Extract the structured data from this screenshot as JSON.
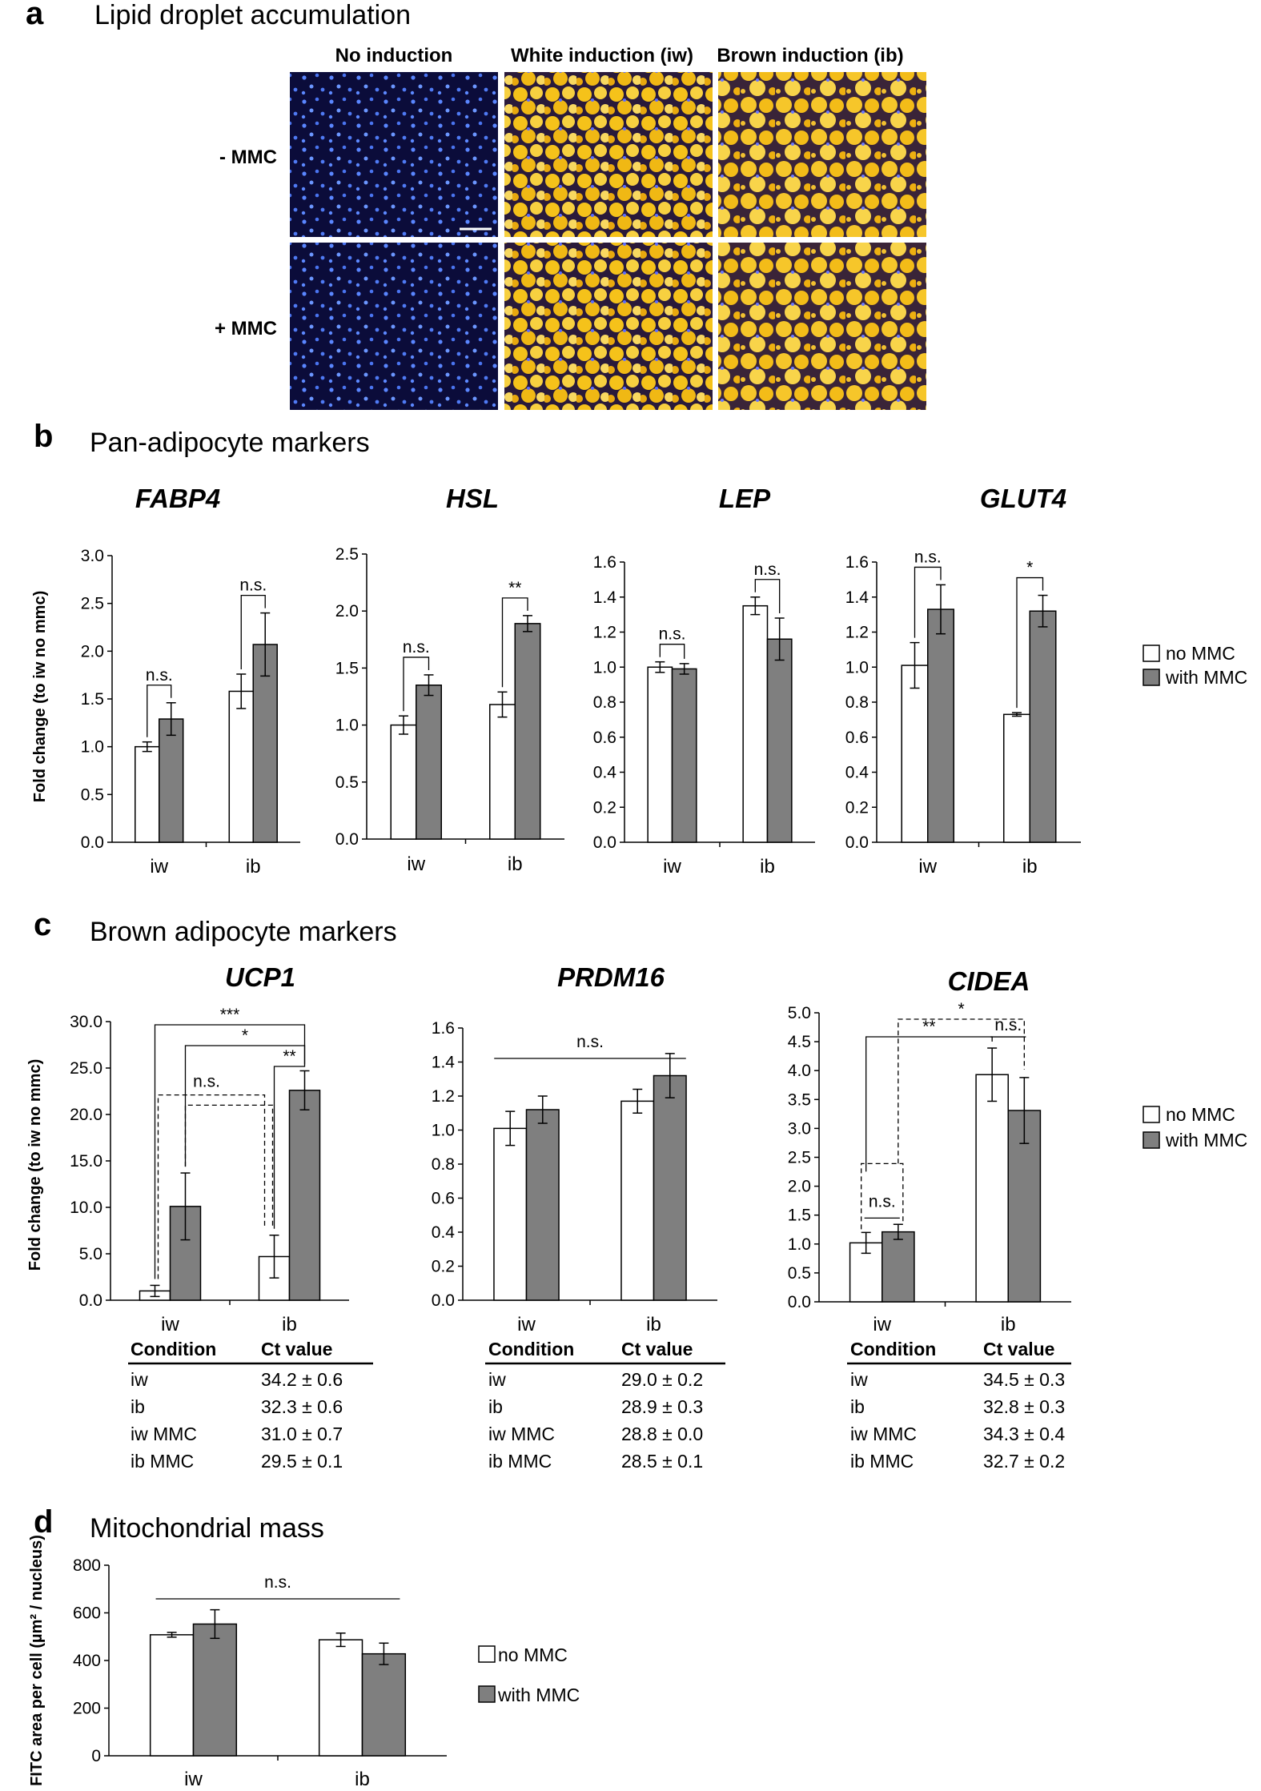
{
  "panel_a": {
    "letter": "a",
    "title": "Lipid droplet accumulation",
    "col_labels": [
      "No induction",
      "White induction (iw)",
      "Brown induction (ib)"
    ],
    "row_labels": [
      "- MMC",
      "+ MMC"
    ]
  },
  "panel_b": {
    "letter": "b",
    "title": "Pan-adipocyte markers"
  },
  "panel_c": {
    "letter": "c",
    "title": "Brown adipocyte markers"
  },
  "panel_d": {
    "letter": "d",
    "title": "Mitochondrial mass"
  },
  "legend": {
    "items": [
      "no MMC",
      "with MMC"
    ],
    "colors": [
      "#ffffff",
      "#7f7f7f"
    ]
  },
  "tables": {
    "headers": [
      "Condition",
      "Ct value"
    ],
    "conditions": [
      "iw",
      "ib",
      "iw MMC",
      "ib MMC"
    ],
    "UCP1": [
      "34.2 ± 0.6",
      "32.3 ± 0.6",
      "31.0 ± 0.7",
      "29.5 ± 0.1"
    ],
    "PRDM16": [
      "29.0 ± 0.2",
      "28.9 ± 0.3",
      "28.8 ± 0.0",
      "28.5 ± 0.1"
    ],
    "CIDEA": [
      "34.5 ± 0.3",
      "32.8 ± 0.3",
      "34.3 ± 0.4",
      "32.7 ± 0.2"
    ]
  },
  "chart_data": [
    {
      "type": "bar",
      "title": "FABP4",
      "ylabel": "Fold change (to iw no mmc)",
      "categories": [
        "iw",
        "ib"
      ],
      "ylim": [
        0,
        3.0
      ],
      "yticks": [
        "0.0",
        "0.5",
        "1.0",
        "1.5",
        "2.0",
        "2.5",
        "3.0"
      ],
      "series": [
        {
          "name": "no MMC",
          "values": [
            1.0,
            1.58
          ],
          "errors": [
            0.05,
            0.18
          ]
        },
        {
          "name": "with MMC",
          "values": [
            1.29,
            2.07
          ],
          "errors": [
            0.17,
            0.33
          ]
        }
      ],
      "annotations": [
        "n.s.",
        "n.s."
      ]
    },
    {
      "type": "bar",
      "title": "HSL",
      "categories": [
        "iw",
        "ib"
      ],
      "ylim": [
        0,
        2.5
      ],
      "yticks": [
        "0.0",
        "0.5",
        "1.0",
        "1.5",
        "2.0",
        "2.5"
      ],
      "series": [
        {
          "name": "no MMC",
          "values": [
            1.0,
            1.18
          ],
          "errors": [
            0.08,
            0.11
          ]
        },
        {
          "name": "with MMC",
          "values": [
            1.35,
            1.89
          ],
          "errors": [
            0.09,
            0.07
          ]
        }
      ],
      "annotations": [
        "n.s.",
        "**"
      ]
    },
    {
      "type": "bar",
      "title": "LEP",
      "categories": [
        "iw",
        "ib"
      ],
      "ylim": [
        0,
        1.6
      ],
      "yticks": [
        "0.0",
        "0.2",
        "0.4",
        "0.6",
        "0.8",
        "1.0",
        "1.2",
        "1.4",
        "1.6"
      ],
      "series": [
        {
          "name": "no MMC",
          "values": [
            1.0,
            1.35
          ],
          "errors": [
            0.03,
            0.05
          ]
        },
        {
          "name": "with MMC",
          "values": [
            0.99,
            1.16
          ],
          "errors": [
            0.03,
            0.12
          ]
        }
      ],
      "annotations": [
        "n.s.",
        "n.s."
      ]
    },
    {
      "type": "bar",
      "title": "GLUT4",
      "categories": [
        "iw",
        "ib"
      ],
      "ylim": [
        0,
        1.6
      ],
      "yticks": [
        "0.0",
        "0.2",
        "0.4",
        "0.6",
        "0.8",
        "1.0",
        "1.2",
        "1.4",
        "1.6"
      ],
      "series": [
        {
          "name": "no MMC",
          "values": [
            1.01,
            0.73
          ],
          "errors": [
            0.13,
            0.01
          ]
        },
        {
          "name": "with MMC",
          "values": [
            1.33,
            1.32
          ],
          "errors": [
            0.14,
            0.09
          ]
        }
      ],
      "annotations": [
        "n.s.",
        "*"
      ]
    },
    {
      "type": "bar",
      "title": "UCP1",
      "ylabel": "Fold change (to iw no mmc)",
      "categories": [
        "iw",
        "ib"
      ],
      "ylim": [
        0,
        30.0
      ],
      "yticks": [
        "0.0",
        "5.0",
        "10.0",
        "15.0",
        "20.0",
        "25.0",
        "30.0"
      ],
      "series": [
        {
          "name": "no MMC",
          "values": [
            1.0,
            4.7
          ],
          "errors": [
            0.6,
            2.3
          ]
        },
        {
          "name": "with MMC",
          "values": [
            10.1,
            22.6
          ],
          "errors": [
            3.6,
            2.1
          ]
        }
      ],
      "annotations": [
        "***",
        "*",
        "**",
        "n.s."
      ]
    },
    {
      "type": "bar",
      "title": "PRDM16",
      "categories": [
        "iw",
        "ib"
      ],
      "ylim": [
        0,
        1.6
      ],
      "yticks": [
        "0.0",
        "0.2",
        "0.4",
        "0.6",
        "0.8",
        "1.0",
        "1.2",
        "1.4",
        "1.6"
      ],
      "series": [
        {
          "name": "no MMC",
          "values": [
            1.01,
            1.17
          ],
          "errors": [
            0.1,
            0.07
          ]
        },
        {
          "name": "with MMC",
          "values": [
            1.12,
            1.32
          ],
          "errors": [
            0.08,
            0.13
          ]
        }
      ],
      "annotations": [
        "n.s."
      ]
    },
    {
      "type": "bar",
      "title": "CIDEA",
      "categories": [
        "iw",
        "ib"
      ],
      "ylim": [
        0,
        5.0
      ],
      "yticks": [
        "0.0",
        "0.5",
        "1.0",
        "1.5",
        "2.0",
        "2.5",
        "3.0",
        "3.5",
        "4.0",
        "4.5",
        "5.0"
      ],
      "series": [
        {
          "name": "no MMC",
          "values": [
            1.02,
            3.93
          ],
          "errors": [
            0.18,
            0.46
          ]
        },
        {
          "name": "with MMC",
          "values": [
            1.21,
            3.31
          ],
          "errors": [
            0.13,
            0.57
          ]
        }
      ],
      "annotations": [
        "*",
        "**",
        "n.s.",
        "n.s."
      ]
    },
    {
      "type": "bar",
      "ylabel": "FITC area per cell (µm² / nucleus)",
      "categories": [
        "iw",
        "ib"
      ],
      "ylim": [
        0,
        800
      ],
      "yticks": [
        "0",
        "200",
        "400",
        "600",
        "800"
      ],
      "series": [
        {
          "name": "no MMC",
          "values": [
            508,
            487
          ],
          "errors": [
            10,
            28
          ]
        },
        {
          "name": "with MMC",
          "values": [
            553,
            428
          ],
          "errors": [
            60,
            45
          ]
        }
      ],
      "annotations": [
        "n.s."
      ]
    }
  ]
}
